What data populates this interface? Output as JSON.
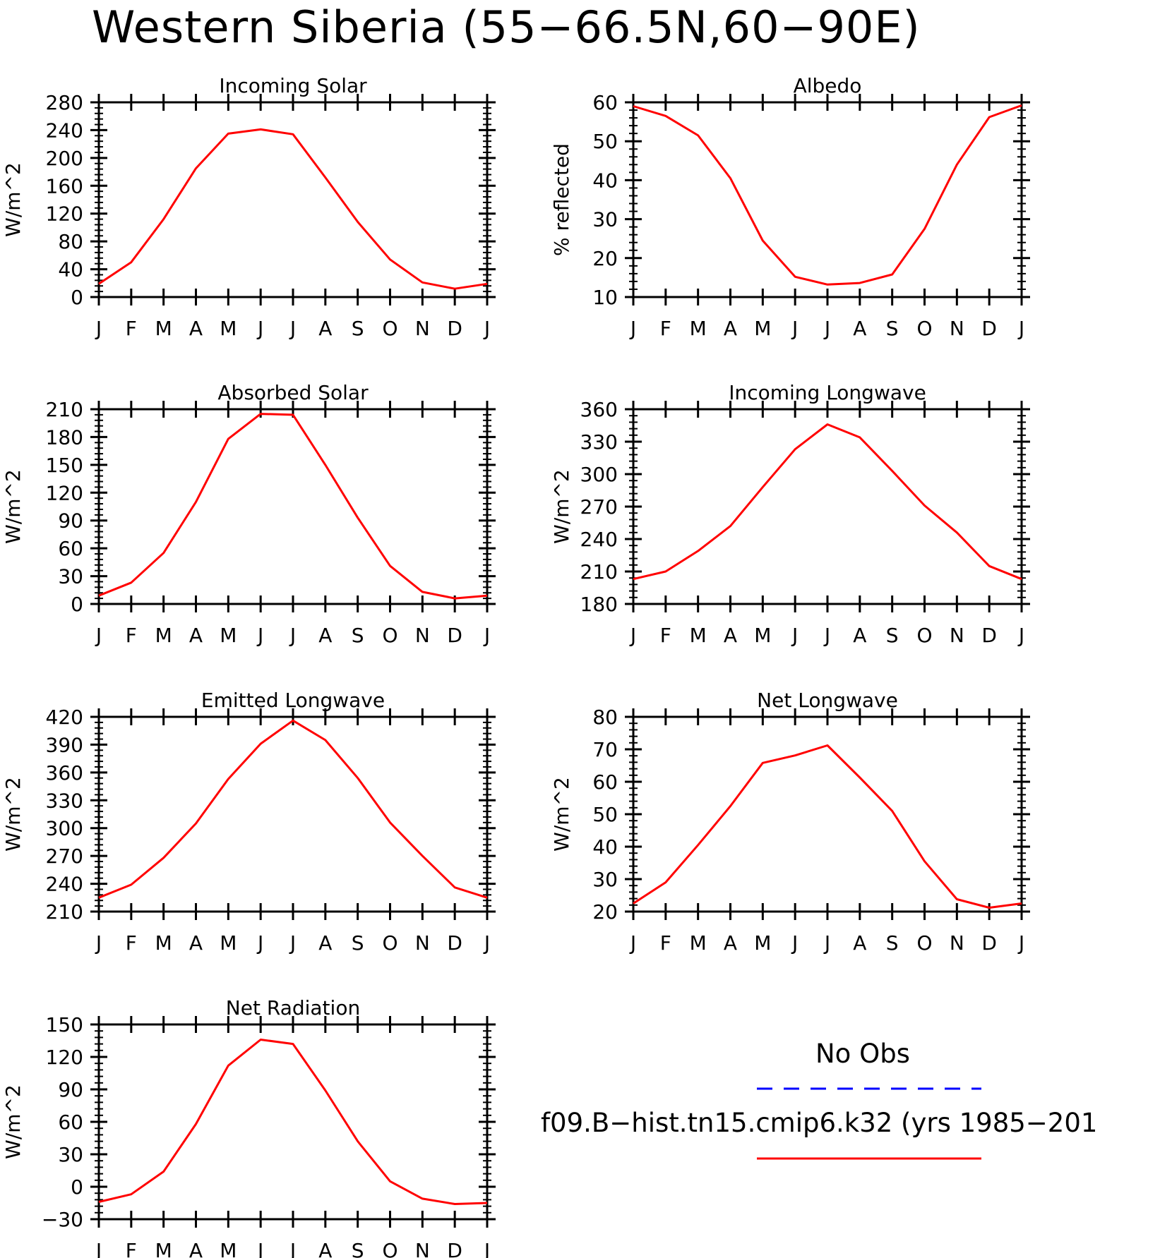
{
  "title": "Western Siberia (55−66.5N,60−90E)",
  "months": [
    "J",
    "F",
    "M",
    "A",
    "M",
    "J",
    "J",
    "A",
    "S",
    "O",
    "N",
    "D",
    "J"
  ],
  "colors": {
    "model_line": "#ff0000",
    "obs_line": "#0000ff",
    "axis": "#000000"
  },
  "legend": {
    "obs_label": "No Obs",
    "model_label": "f09.B−hist.tn15.cmip6.k32 (yrs 1985−201"
  },
  "chart_data": [
    {
      "type": "line",
      "title": "Incoming Solar",
      "ylabel": "W/m^2",
      "ylim": [
        0,
        280
      ],
      "yticks": [
        0,
        40,
        80,
        120,
        160,
        200,
        240,
        280
      ],
      "series": [
        {
          "values": [
            19,
            50,
            112,
            185,
            235,
            241,
            234,
            172,
            108,
            54,
            21,
            12,
            19
          ]
        }
      ]
    },
    {
      "type": "line",
      "title": "Albedo",
      "ylabel": "% reflected",
      "ylim": [
        10,
        60
      ],
      "yticks": [
        10,
        20,
        30,
        40,
        50,
        60
      ],
      "series": [
        {
          "values": [
            59,
            56.5,
            51.5,
            40.5,
            24.5,
            15.2,
            13.2,
            13.6,
            15.8,
            27.5,
            44,
            56.2,
            59.2
          ]
        }
      ]
    },
    {
      "type": "line",
      "title": "Absorbed Solar",
      "ylabel": "W/m^2",
      "ylim": [
        0,
        210
      ],
      "yticks": [
        0,
        30,
        60,
        90,
        120,
        150,
        180,
        210
      ],
      "series": [
        {
          "values": [
            9,
            23,
            55,
            110,
            178,
            205,
            204,
            150,
            93,
            41,
            13,
            6,
            9
          ]
        }
      ]
    },
    {
      "type": "line",
      "title": "Incoming Longwave",
      "ylabel": "W/m^2",
      "ylim": [
        180,
        360
      ],
      "yticks": [
        180,
        210,
        240,
        270,
        300,
        330,
        360
      ],
      "series": [
        {
          "values": [
            203,
            210,
            229,
            252,
            288,
            323,
            346,
            334,
            303,
            271,
            246,
            215,
            203
          ]
        }
      ]
    },
    {
      "type": "line",
      "title": "Emitted Longwave",
      "ylabel": "W/m^2",
      "ylim": [
        210,
        420
      ],
      "yticks": [
        210,
        240,
        270,
        300,
        330,
        360,
        390,
        420
      ],
      "series": [
        {
          "values": [
            225,
            239,
            268,
            305,
            353,
            391,
            416,
            395,
            354,
            306,
            270,
            236,
            225
          ]
        }
      ]
    },
    {
      "type": "line",
      "title": "Net Longwave",
      "ylabel": "W/m^2",
      "ylim": [
        20,
        80
      ],
      "yticks": [
        20,
        30,
        40,
        50,
        60,
        70,
        80
      ],
      "series": [
        {
          "values": [
            22.5,
            29,
            40.5,
            52.5,
            65.8,
            68.1,
            71.2,
            61.3,
            51,
            35.5,
            23.8,
            21.2,
            22.5
          ]
        }
      ]
    },
    {
      "type": "line",
      "title": "Net Radiation",
      "ylabel": "W/m^2",
      "ylim": [
        -30,
        150
      ],
      "yticks": [
        -30,
        0,
        30,
        60,
        90,
        120,
        150
      ],
      "series": [
        {
          "values": [
            -14,
            -7,
            14,
            58,
            112,
            136,
            132,
            89,
            42,
            5,
            -11,
            -16,
            -15
          ]
        }
      ]
    }
  ]
}
